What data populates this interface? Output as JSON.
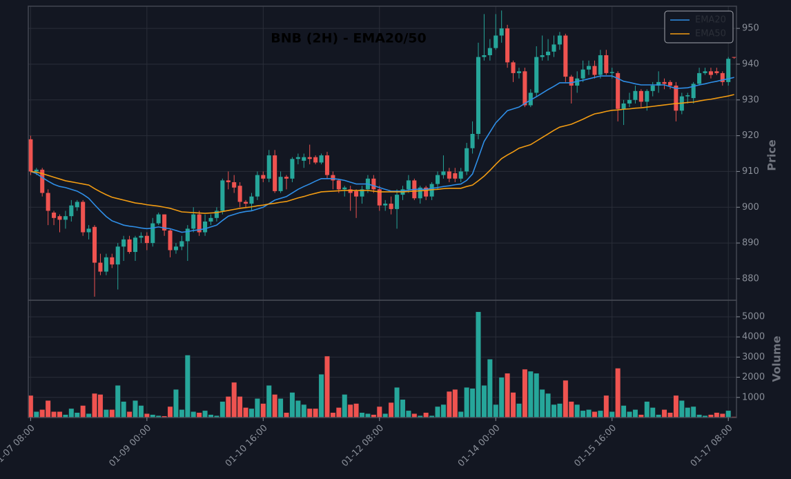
{
  "chart_data": [
    {
      "type": "candlestick",
      "title": "BNB (2H) - EMA20/50",
      "ylabel": "Price",
      "categories": [
        "01-07 08:00",
        null,
        null,
        null,
        null,
        null,
        null,
        null,
        null,
        null,
        null,
        null,
        null,
        null,
        null,
        null,
        null,
        null,
        null,
        null,
        "01-09 00:00",
        null,
        null,
        null,
        null,
        null,
        null,
        null,
        null,
        null,
        null,
        null,
        null,
        null,
        null,
        null,
        null,
        null,
        null,
        null,
        "01-10 16:00",
        null,
        null,
        null,
        null,
        null,
        null,
        null,
        null,
        null,
        null,
        null,
        null,
        null,
        null,
        null,
        null,
        null,
        null,
        null,
        "01-12 08:00",
        null,
        null,
        null,
        null,
        null,
        null,
        null,
        null,
        null,
        null,
        null,
        null,
        null,
        null,
        null,
        null,
        null,
        null,
        null,
        "01-14 00:00",
        null,
        null,
        null,
        null,
        null,
        null,
        null,
        null,
        null,
        null,
        null,
        null,
        null,
        null,
        null,
        null,
        null,
        null,
        null,
        "01-15 16:00",
        null,
        null,
        null,
        null,
        null,
        null,
        null,
        null,
        null,
        null,
        null,
        null,
        null,
        null,
        null,
        null,
        null,
        null,
        null,
        "01-17 08:00",
        null
      ],
      "open": [
        919,
        910,
        910.5,
        904,
        898.5,
        897.5,
        896.5,
        897.5,
        900,
        901.5,
        893,
        894.5,
        884.5,
        882,
        886,
        884,
        889,
        891,
        887.5,
        891.5,
        892,
        890,
        895.5,
        898,
        893.5,
        888,
        889,
        890.5,
        894,
        898,
        893,
        896,
        897,
        899,
        907.5,
        907,
        906,
        901.5,
        901,
        903,
        909,
        908,
        914.5,
        904.5,
        908.5,
        908,
        913.5,
        913,
        914,
        914,
        912.5,
        914.5,
        909,
        907.5,
        905,
        905,
        904.5,
        903,
        905,
        908,
        905,
        900.5,
        901,
        899.5,
        903.5,
        905,
        907.5,
        902.5,
        905.5,
        903,
        906.5,
        909,
        910,
        909.5,
        908,
        910,
        916.5,
        920.5,
        942,
        942.5,
        944.5,
        948,
        950,
        940.5,
        937.5,
        938,
        928.5,
        932,
        942,
        942.5,
        943.5,
        945.5,
        948,
        936.5,
        934,
        936,
        938.5,
        939.5,
        937,
        942.5,
        937.5,
        937.5,
        927.5,
        929,
        930,
        932.5,
        929.5,
        932.5,
        934,
        935,
        935,
        934,
        927,
        931,
        930.5,
        934.5,
        937.5,
        938,
        938,
        937.5,
        935,
        942
      ],
      "high": [
        920,
        911,
        911,
        905,
        899,
        898,
        899,
        902,
        902,
        902,
        895,
        895,
        887,
        887,
        887,
        890,
        892,
        892,
        892,
        893,
        893,
        897,
        898.5,
        898,
        894,
        890,
        892,
        895,
        900,
        899,
        898,
        898,
        900,
        908,
        910,
        909,
        907,
        902,
        904,
        910,
        910,
        916,
        916,
        910,
        909,
        914,
        915,
        915,
        917.5,
        914.5,
        915,
        915.5,
        910,
        908,
        906,
        906,
        905,
        906,
        909,
        909,
        906,
        902,
        903,
        905,
        906,
        909,
        908,
        906,
        906,
        907,
        910,
        914.5,
        911,
        911,
        911,
        918,
        924,
        946,
        954,
        947,
        954,
        955,
        951,
        941,
        939,
        939,
        933,
        945,
        948,
        947,
        948,
        949,
        948.5,
        937,
        938,
        941,
        941,
        941,
        944,
        944,
        939,
        938,
        930,
        932,
        934,
        933,
        933,
        935,
        938,
        936,
        935.5,
        935,
        932,
        932,
        935,
        939,
        939,
        939,
        939,
        938,
        942,
        942
      ],
      "low": [
        909,
        909,
        903,
        895,
        895,
        893,
        894,
        896,
        899,
        892,
        891,
        875,
        881,
        881,
        883,
        877,
        885,
        887,
        885,
        890,
        888,
        889,
        895,
        892,
        886,
        887,
        888,
        885,
        893,
        892,
        892,
        895,
        896,
        898,
        905,
        904,
        900,
        900,
        899,
        902,
        907,
        907,
        904,
        904,
        905,
        907,
        912,
        911,
        912,
        912,
        912,
        908,
        905,
        904,
        903,
        899,
        897,
        901,
        904,
        904,
        899,
        899,
        898,
        894,
        902,
        904,
        902,
        901,
        902,
        902,
        905,
        908,
        907,
        907,
        907,
        909,
        915,
        919,
        941,
        941,
        944,
        946,
        939,
        935,
        936,
        928,
        928,
        931,
        941,
        941,
        942,
        944,
        935,
        929,
        932,
        935,
        937,
        936,
        936,
        937,
        936,
        924,
        923,
        928,
        929,
        928,
        927,
        931,
        932,
        933,
        933,
        924,
        926,
        929,
        929,
        934,
        937,
        936,
        937,
        934,
        934,
        941.5
      ],
      "close": [
        910,
        910.5,
        904,
        899,
        897,
        896.5,
        897.5,
        900.5,
        901.5,
        893,
        894,
        884.5,
        882,
        886,
        884,
        889,
        891,
        887.5,
        891.5,
        892,
        890,
        895.5,
        898,
        893.5,
        888,
        889,
        890.5,
        894,
        898,
        893,
        896,
        897,
        899,
        907.5,
        907,
        905.5,
        901.5,
        901,
        903,
        909,
        908,
        914.5,
        904.5,
        908.5,
        908,
        913.5,
        914,
        914,
        913.5,
        912.5,
        914.5,
        909,
        907.5,
        905,
        905.5,
        904,
        903,
        905,
        908,
        905,
        900.5,
        901,
        899.5,
        903.5,
        905,
        907.5,
        902.5,
        905.5,
        903,
        906.5,
        909,
        910,
        908,
        908,
        910,
        916.5,
        920.5,
        942,
        942.5,
        944.5,
        948,
        950,
        940.5,
        937.5,
        938,
        928.5,
        932,
        942,
        942.5,
        943.5,
        945.5,
        948,
        936.5,
        934,
        936,
        938.5,
        939.5,
        937,
        942.5,
        937.5,
        937.8,
        927.5,
        929,
        930,
        932.5,
        929.5,
        932.5,
        934,
        935,
        934.5,
        934,
        927,
        931,
        931.3,
        934.5,
        937.5,
        938,
        937,
        937.5,
        935,
        941.5,
        941.8
      ],
      "up_color": "#26a69a",
      "down_color": "#ef5350",
      "series": [
        {
          "name": "EMA20",
          "color": "#2f8fe8",
          "values": [
            910.0,
            909.4,
            908.3,
            907.3,
            906.4,
            905.8,
            905.5,
            905.0,
            904.5,
            903.6,
            902.5,
            900.7,
            899.0,
            897.4,
            896.2,
            895.6,
            895.0,
            894.7,
            894.5,
            894.2,
            894.0,
            894.2,
            894.5,
            894.2,
            894.0,
            893.5,
            893.0,
            893.2,
            893.5,
            893.7,
            894.0,
            894.5,
            895.0,
            896.3,
            897.5,
            898.0,
            898.5,
            898.8,
            899.0,
            899.5,
            900.0,
            901.0,
            902.0,
            902.5,
            903.0,
            904.0,
            905.0,
            905.8,
            906.5,
            907.3,
            908.0,
            908.0,
            908.0,
            907.8,
            907.5,
            907.0,
            906.5,
            906.5,
            906.5,
            906.0,
            905.5,
            905.0,
            904.5,
            904.5,
            904.5,
            904.8,
            905.0,
            905.0,
            905.0,
            905.3,
            905.5,
            905.8,
            906.0,
            906.3,
            906.5,
            907.5,
            909.3,
            913.8,
            918.4,
            921.0,
            923.6,
            925.3,
            927.0,
            927.5,
            928.0,
            929.0,
            930.0,
            930.9,
            931.9,
            932.9,
            933.8,
            934.8,
            934.8,
            934.8,
            935.2,
            935.5,
            935.9,
            936.3,
            936.7,
            936.7,
            936.7,
            936.0,
            935.2,
            934.9,
            934.5,
            934.2,
            934.2,
            934.2,
            934.2,
            934.2,
            933.7,
            933.2,
            933.3,
            933.4,
            933.8,
            934.2,
            934.5,
            934.9,
            935.2,
            935.6,
            935.9,
            936.3
          ]
        },
        {
          "name": "EMA50",
          "color": "#f39c12",
          "values": [
            910.0,
            909.8,
            909.4,
            908.9,
            908.4,
            907.9,
            907.4,
            907.1,
            906.8,
            906.5,
            906.2,
            905.2,
            904.3,
            903.5,
            902.8,
            902.4,
            902.0,
            901.6,
            901.2,
            901.0,
            900.7,
            900.5,
            900.3,
            900.0,
            899.7,
            899.2,
            898.7,
            898.6,
            898.5,
            898.4,
            898.3,
            898.4,
            898.5,
            898.8,
            899.1,
            899.4,
            899.7,
            899.9,
            900.1,
            900.4,
            900.6,
            900.9,
            901.1,
            901.4,
            901.6,
            902.1,
            902.6,
            903.0,
            903.5,
            903.9,
            904.3,
            904.4,
            904.5,
            904.6,
            904.7,
            904.7,
            904.7,
            904.7,
            904.7,
            904.5,
            904.3,
            904.3,
            904.3,
            904.3,
            904.3,
            904.4,
            904.5,
            904.6,
            904.7,
            904.9,
            905.0,
            905.2,
            905.3,
            905.3,
            905.3,
            905.8,
            906.2,
            907.4,
            908.7,
            910.3,
            912.0,
            913.6,
            914.6,
            915.5,
            916.5,
            917.0,
            917.5,
            918.5,
            919.5,
            920.5,
            921.5,
            922.4,
            922.8,
            923.2,
            923.9,
            924.6,
            925.4,
            926.1,
            926.4,
            926.8,
            927.1,
            927.2,
            927.4,
            927.5,
            927.7,
            927.8,
            928.0,
            928.2,
            928.4,
            928.6,
            928.8,
            929.0,
            929.1,
            929.3,
            929.4,
            929.7,
            930.0,
            930.2,
            930.5,
            930.8,
            931.1,
            931.5
          ]
        }
      ],
      "xlim": [
        -0.4,
        121.4
      ],
      "ylim": [
        874,
        956.2
      ],
      "yticks": [
        880,
        890,
        900,
        910,
        920,
        930,
        940,
        950
      ],
      "grid": true,
      "legend": "upper right"
    },
    {
      "type": "bar",
      "ylabel": "Volume",
      "values": [
        1100,
        300,
        400,
        850,
        300,
        300,
        150,
        450,
        250,
        600,
        200,
        1200,
        1150,
        400,
        400,
        1600,
        800,
        300,
        850,
        600,
        200,
        150,
        100,
        80,
        550,
        1400,
        400,
        3100,
        300,
        250,
        350,
        150,
        100,
        800,
        1050,
        1750,
        1050,
        500,
        450,
        950,
        700,
        1600,
        1150,
        950,
        250,
        1250,
        850,
        650,
        450,
        450,
        2150,
        3050,
        250,
        500,
        1150,
        650,
        700,
        250,
        200,
        150,
        550,
        200,
        750,
        1500,
        900,
        350,
        200,
        100,
        250,
        100,
        550,
        650,
        1300,
        1400,
        300,
        1500,
        1450,
        5250,
        1600,
        2900,
        650,
        2000,
        2200,
        1250,
        700,
        2400,
        2300,
        2200,
        1400,
        1200,
        650,
        700,
        1850,
        800,
        650,
        350,
        400,
        300,
        350,
        1100,
        300,
        2450,
        600,
        300,
        400,
        150,
        800,
        500,
        150,
        400,
        250,
        1100,
        850,
        500,
        550,
        150,
        100,
        150,
        250,
        200,
        350,
        50
      ],
      "ylim": [
        0,
        5820
      ],
      "yticks": [
        1000,
        2000,
        3000,
        4000,
        5000
      ],
      "grid": true
    }
  ]
}
